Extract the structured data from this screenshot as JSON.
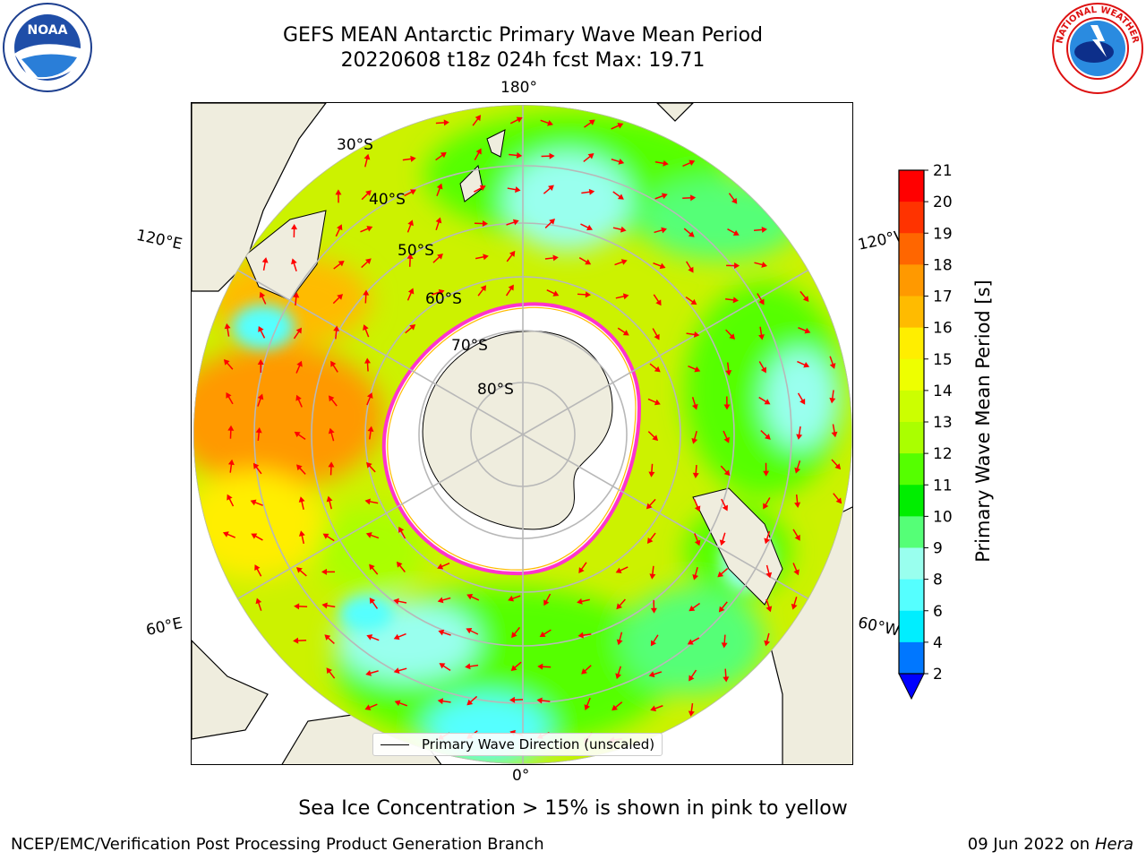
{
  "title_line1": "GEFS MEAN Antarctic Primary Wave Mean Period",
  "title_line2": "20220608 t18z 024h fcst   Max: 19.71",
  "logos": {
    "left": "noaa-logo",
    "right": "nws-logo",
    "noaa_text": "NOAA",
    "nws_text": "NATIONAL WEATHER SERVICE"
  },
  "map": {
    "projection": "south-polar-stereographic",
    "meridian_labels": {
      "top": "180°",
      "bottom": "0°",
      "upper_left": "120°E",
      "upper_right": "120°W",
      "lower_left": "60°E",
      "lower_right": "60°W"
    },
    "latitude_labels": [
      "30°S",
      "40°S",
      "50°S",
      "60°S",
      "70°S",
      "80°S"
    ],
    "legend": "Primary Wave Direction (unscaled)",
    "colors": {
      "land": "#efedde",
      "sea_ice": "#ffffff",
      "ice_edge": "#ff33cc",
      "arrows": "#ff0000",
      "grid": "#b8b8b8"
    }
  },
  "colorbar": {
    "label": "Primary Wave Mean Period [s]",
    "ticks": [
      "21",
      "20",
      "19",
      "18",
      "17",
      "16",
      "15",
      "14",
      "13",
      "12",
      "11",
      "10",
      "9",
      "8",
      "6",
      "4",
      "2"
    ],
    "colors": [
      "#ff0000",
      "#ff3300",
      "#ff6600",
      "#ff9900",
      "#ffbb00",
      "#ffee00",
      "#eeff00",
      "#ccff00",
      "#aaff00",
      "#55ff00",
      "#00ee00",
      "#55ff77",
      "#99ffee",
      "#55ffff",
      "#00eeff",
      "#0077ff"
    ],
    "under_color": "#0000ff"
  },
  "note": "Sea Ice Concentration > 15% is shown in pink to yellow",
  "footer": {
    "left": "NCEP/EMC/Verification Post Processing Product Generation Branch",
    "date": "09 Jun 2022 on",
    "host": "Hera"
  }
}
